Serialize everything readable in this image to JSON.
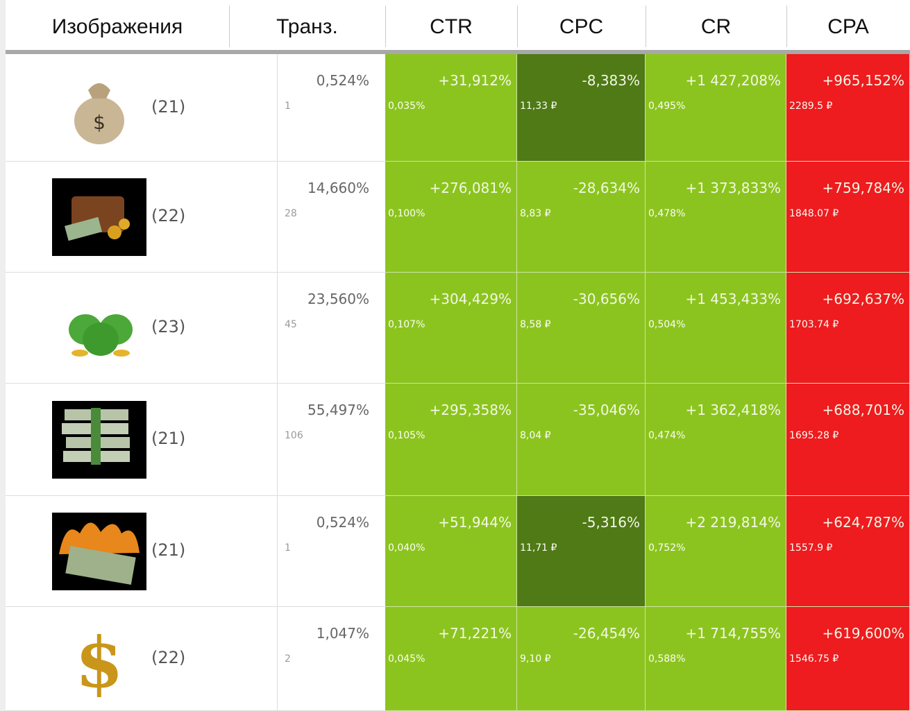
{
  "header": {
    "columns": [
      "Изображения",
      "Транз.",
      "CTR",
      "CPC",
      "CR",
      "CPA"
    ]
  },
  "rows": [
    {
      "count": "(21)",
      "transitions": {
        "percent": "0,524%",
        "count": "1"
      },
      "ctr": {
        "change": "+31,912%",
        "value": "0,035%",
        "color": "#8cc41f"
      },
      "cpc": {
        "change": "-8,383%",
        "value": "11,33 ₽",
        "color": "#4f7a16"
      },
      "cr": {
        "change": "+1 427,208%",
        "value": "0,495%",
        "color": "#8cc41f"
      },
      "cpa": {
        "change": "+965,152%",
        "value": "2289.5 ₽",
        "color": "#ee1b1f"
      }
    },
    {
      "count": "(22)",
      "transitions": {
        "percent": "14,660%",
        "count": "28"
      },
      "ctr": {
        "change": "+276,081%",
        "value": "0,100%",
        "color": "#8cc41f"
      },
      "cpc": {
        "change": "-28,634%",
        "value": "8,83 ₽",
        "color": "#8cc41f"
      },
      "cr": {
        "change": "+1 373,833%",
        "value": "0,478%",
        "color": "#8cc41f"
      },
      "cpa": {
        "change": "+759,784%",
        "value": "1848.07 ₽",
        "color": "#ee1b1f"
      }
    },
    {
      "count": "(23)",
      "transitions": {
        "percent": "23,560%",
        "count": "45"
      },
      "ctr": {
        "change": "+304,429%",
        "value": "0,107%",
        "color": "#8cc41f"
      },
      "cpc": {
        "change": "-30,656%",
        "value": "8,58 ₽",
        "color": "#8cc41f"
      },
      "cr": {
        "change": "+1 453,433%",
        "value": "0,504%",
        "color": "#8cc41f"
      },
      "cpa": {
        "change": "+692,637%",
        "value": "1703.74 ₽",
        "color": "#ee1b1f"
      }
    },
    {
      "count": "(21)",
      "transitions": {
        "percent": "55,497%",
        "count": "106"
      },
      "ctr": {
        "change": "+295,358%",
        "value": "0,105%",
        "color": "#8cc41f"
      },
      "cpc": {
        "change": "-35,046%",
        "value": "8,04 ₽",
        "color": "#8cc41f"
      },
      "cr": {
        "change": "+1 362,418%",
        "value": "0,474%",
        "color": "#8cc41f"
      },
      "cpa": {
        "change": "+688,701%",
        "value": "1695.28 ₽",
        "color": "#ee1b1f"
      }
    },
    {
      "count": "(21)",
      "transitions": {
        "percent": "0,524%",
        "count": "1"
      },
      "ctr": {
        "change": "+51,944%",
        "value": "0,040%",
        "color": "#8cc41f"
      },
      "cpc": {
        "change": "-5,316%",
        "value": "11,71 ₽",
        "color": "#4f7a16"
      },
      "cr": {
        "change": "+2 219,814%",
        "value": "0,752%",
        "color": "#8cc41f"
      },
      "cpa": {
        "change": "+624,787%",
        "value": "1557.9 ₽",
        "color": "#ee1b1f"
      }
    },
    {
      "count": "(22)",
      "transitions": {
        "percent": "1,047%",
        "count": "2"
      },
      "ctr": {
        "change": "+71,221%",
        "value": "0,045%",
        "color": "#8cc41f"
      },
      "cpc": {
        "change": "-26,454%",
        "value": "9,10 ₽",
        "color": "#8cc41f"
      },
      "cr": {
        "change": "+1 714,755%",
        "value": "0,588%",
        "color": "#8cc41f"
      },
      "cpa": {
        "change": "+619,600%",
        "value": "1546.75 ₽",
        "color": "#ee1b1f"
      }
    }
  ]
}
